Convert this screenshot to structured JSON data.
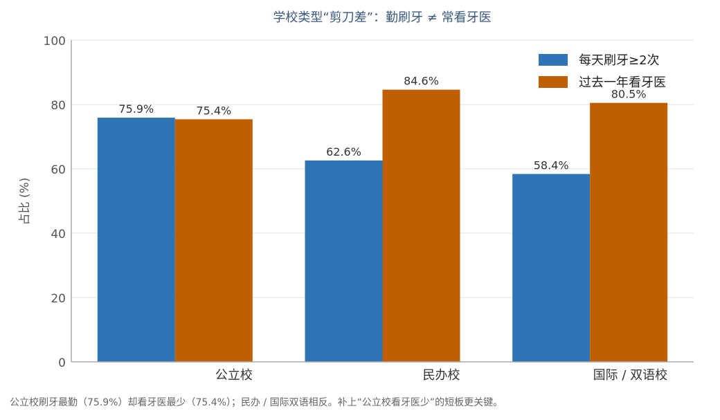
{
  "chart_data": {
    "type": "bar",
    "title": "学校类型“剪刀差”：勤刷牙 ≠ 常看牙医",
    "ylabel": "占比 (%)",
    "xlabel": "",
    "ylim": [
      0,
      100
    ],
    "yticks": [
      0,
      20,
      40,
      60,
      80,
      100
    ],
    "categories": [
      "公立校",
      "民办校",
      "国际 / 双语校"
    ],
    "series": [
      {
        "name": "每天刷牙≥2次",
        "values": [
          75.9,
          62.6,
          58.4
        ],
        "labels": [
          "75.9%",
          "62.6%",
          "58.4%"
        ],
        "color": "#2e75b6"
      },
      {
        "name": "过去一年看牙医",
        "values": [
          75.4,
          84.6,
          80.5
        ],
        "labels": [
          "75.4%",
          "84.6%",
          "80.5%"
        ],
        "color": "#c05f00"
      }
    ],
    "grid": true,
    "legend": "top-right"
  },
  "footnote": "公立校刷牙最勤（75.9%）却看牙医最少（75.4%）；民办 / 国际双语相反。补上“公立校看牙医少”的短板更关键。"
}
